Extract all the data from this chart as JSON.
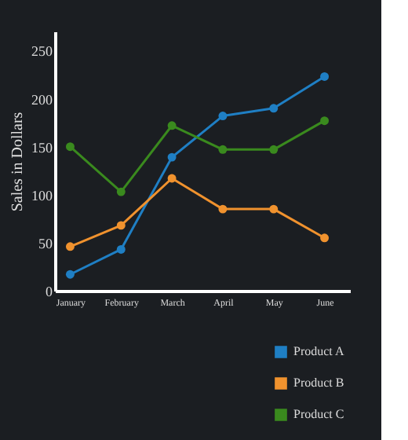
{
  "chart_data": {
    "type": "line",
    "ylabel": "Sales in Dollars",
    "categories": [
      "January",
      "February",
      "March",
      "April",
      "May",
      "June"
    ],
    "series": [
      {
        "name": "Product A",
        "color": "#1f7fc4",
        "values": [
          17,
          43,
          139,
          182,
          190,
          223
        ]
      },
      {
        "name": "Product B",
        "color": "#f0922e",
        "values": [
          46,
          68,
          117,
          85,
          85,
          55
        ]
      },
      {
        "name": "Product C",
        "color": "#3a8a1e",
        "values": [
          150,
          103,
          172,
          147,
          147,
          177
        ]
      }
    ],
    "ylim": [
      0,
      270
    ],
    "yticks": [
      0,
      50,
      100,
      150,
      200,
      250
    ],
    "grid": false,
    "legend": "bottom right",
    "marker": "circle",
    "line_style": "solid"
  }
}
